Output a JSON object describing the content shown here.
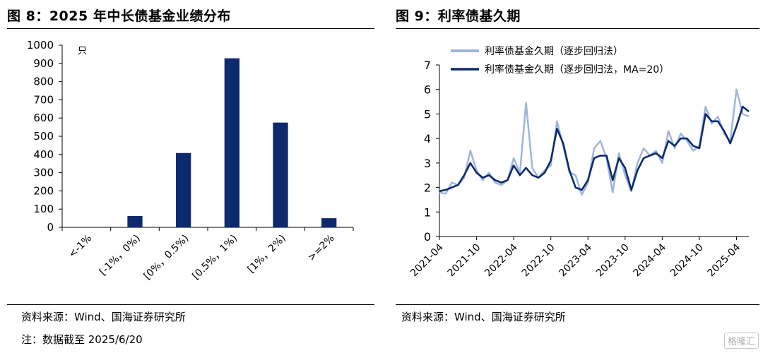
{
  "left": {
    "title": "图 8：2025 年中长债基金业绩分布",
    "source": "资料来源：Wind、国海证券研究所",
    "note": "注：数据截至 2025/6/20"
  },
  "right": {
    "title": "图 9：利率债基久期",
    "source": "资料来源：Wind、国海证券研究所"
  },
  "watermark": "格隆汇",
  "chart_data": [
    {
      "type": "bar",
      "title": "2025 年中长债基金业绩分布",
      "unit_label": "只",
      "categories": [
        "<-1%",
        "[-1%，0%)",
        "[0%，0.5%)",
        "[0.5%，1%)",
        "[1%，2%)",
        ">=2%"
      ],
      "values": [
        0,
        62,
        408,
        928,
        575,
        50
      ],
      "ylim": [
        0,
        1000
      ],
      "yticks": [
        0,
        100,
        200,
        300,
        400,
        500,
        600,
        700,
        800,
        900,
        1000
      ],
      "grid": false,
      "color": "#0d2a6e"
    },
    {
      "type": "line",
      "title": "利率债基久期",
      "ylim": [
        0,
        7
      ],
      "yticks": [
        0,
        1,
        2,
        3,
        4,
        5,
        6,
        7
      ],
      "xticks": [
        "2021-04",
        "2021-10",
        "2022-04",
        "2022-10",
        "2023-04",
        "2023-10",
        "2024-04",
        "2024-10",
        "2025-04"
      ],
      "x_range": [
        "2021-04",
        "2025-06"
      ],
      "grid": false,
      "legend_position": "top",
      "series": [
        {
          "name": "利率债基金久期（逐步回归法）",
          "color": "#9db6dd",
          "points": [
            [
              "2021-04",
              1.8
            ],
            [
              "2021-05",
              1.75
            ],
            [
              "2021-06",
              2.2
            ],
            [
              "2021-07",
              2.1
            ],
            [
              "2021-08",
              2.4
            ],
            [
              "2021-09",
              3.5
            ],
            [
              "2021-10",
              2.7
            ],
            [
              "2021-11",
              2.3
            ],
            [
              "2021-12",
              2.6
            ],
            [
              "2022-01",
              2.2
            ],
            [
              "2022-02",
              2.1
            ],
            [
              "2022-03",
              2.3
            ],
            [
              "2022-04",
              3.2
            ],
            [
              "2022-05",
              2.6
            ],
            [
              "2022-06",
              5.45
            ],
            [
              "2022-07",
              2.8
            ],
            [
              "2022-08",
              2.4
            ],
            [
              "2022-09",
              2.7
            ],
            [
              "2022-10",
              2.9
            ],
            [
              "2022-11",
              4.7
            ],
            [
              "2022-12",
              3.7
            ],
            [
              "2023-01",
              2.6
            ],
            [
              "2023-02",
              2.5
            ],
            [
              "2023-03",
              1.7
            ],
            [
              "2023-04",
              2.2
            ],
            [
              "2023-05",
              3.6
            ],
            [
              "2023-06",
              3.9
            ],
            [
              "2023-07",
              3.2
            ],
            [
              "2023-08",
              1.8
            ],
            [
              "2023-09",
              3.4
            ],
            [
              "2023-10",
              2.5
            ],
            [
              "2023-11",
              1.85
            ],
            [
              "2023-12",
              3.0
            ],
            [
              "2024-01",
              3.6
            ],
            [
              "2024-02",
              3.3
            ],
            [
              "2024-03",
              3.5
            ],
            [
              "2024-04",
              3.0
            ],
            [
              "2024-05",
              4.3
            ],
            [
              "2024-06",
              3.6
            ],
            [
              "2024-07",
              4.2
            ],
            [
              "2024-08",
              3.9
            ],
            [
              "2024-09",
              3.5
            ],
            [
              "2024-10",
              3.7
            ],
            [
              "2024-11",
              5.3
            ],
            [
              "2024-12",
              4.6
            ],
            [
              "2025-01",
              4.9
            ],
            [
              "2025-02",
              4.2
            ],
            [
              "2025-03",
              3.9
            ],
            [
              "2025-04",
              6.0
            ],
            [
              "2025-05",
              5.0
            ],
            [
              "2025-06",
              4.9
            ]
          ]
        },
        {
          "name": "利率债基金久期（逐步回归法，MA=20）",
          "color": "#0d2a6e",
          "points": [
            [
              "2021-04",
              1.85
            ],
            [
              "2021-05",
              1.9
            ],
            [
              "2021-06",
              2.0
            ],
            [
              "2021-07",
              2.1
            ],
            [
              "2021-08",
              2.5
            ],
            [
              "2021-09",
              3.0
            ],
            [
              "2021-10",
              2.6
            ],
            [
              "2021-11",
              2.4
            ],
            [
              "2021-12",
              2.5
            ],
            [
              "2022-01",
              2.3
            ],
            [
              "2022-02",
              2.2
            ],
            [
              "2022-03",
              2.3
            ],
            [
              "2022-04",
              2.9
            ],
            [
              "2022-05",
              2.5
            ],
            [
              "2022-06",
              2.8
            ],
            [
              "2022-07",
              2.5
            ],
            [
              "2022-08",
              2.4
            ],
            [
              "2022-09",
              2.6
            ],
            [
              "2022-10",
              3.1
            ],
            [
              "2022-11",
              4.4
            ],
            [
              "2022-12",
              3.8
            ],
            [
              "2023-01",
              2.7
            ],
            [
              "2023-02",
              2.0
            ],
            [
              "2023-03",
              1.9
            ],
            [
              "2023-04",
              2.3
            ],
            [
              "2023-05",
              3.2
            ],
            [
              "2023-06",
              3.3
            ],
            [
              "2023-07",
              3.3
            ],
            [
              "2023-08",
              2.3
            ],
            [
              "2023-09",
              3.2
            ],
            [
              "2023-10",
              2.8
            ],
            [
              "2023-11",
              1.9
            ],
            [
              "2023-12",
              2.7
            ],
            [
              "2024-01",
              3.2
            ],
            [
              "2024-02",
              3.3
            ],
            [
              "2024-03",
              3.4
            ],
            [
              "2024-04",
              3.2
            ],
            [
              "2024-05",
              3.9
            ],
            [
              "2024-06",
              3.7
            ],
            [
              "2024-07",
              4.0
            ],
            [
              "2024-08",
              4.0
            ],
            [
              "2024-09",
              3.7
            ],
            [
              "2024-10",
              3.6
            ],
            [
              "2024-11",
              5.0
            ],
            [
              "2024-12",
              4.7
            ],
            [
              "2025-01",
              4.7
            ],
            [
              "2025-02",
              4.3
            ],
            [
              "2025-03",
              3.8
            ],
            [
              "2025-04",
              4.5
            ],
            [
              "2025-05",
              5.3
            ],
            [
              "2025-06",
              5.1
            ]
          ]
        }
      ]
    }
  ]
}
